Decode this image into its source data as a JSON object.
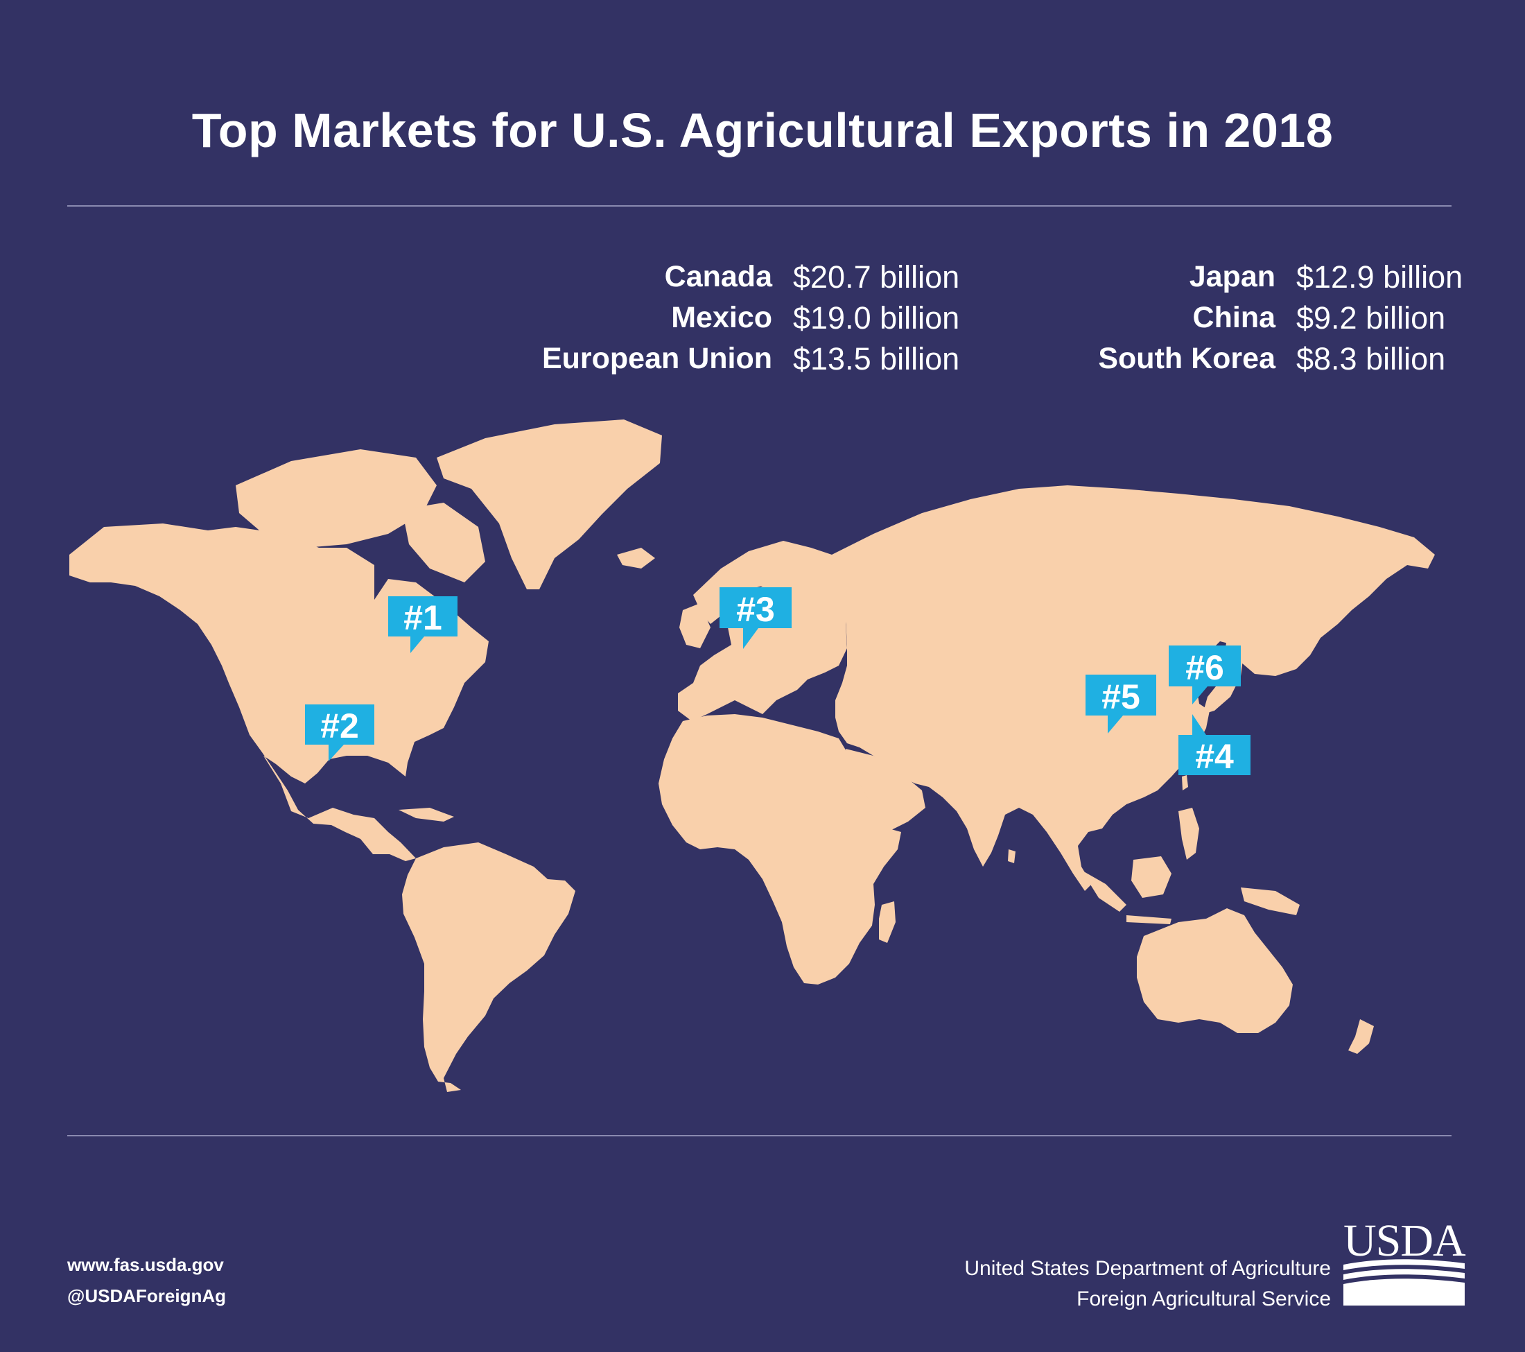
{
  "title": "Top Markets for U.S. Agricultural Exports in 2018",
  "stats": {
    "left": [
      {
        "name": "Canada",
        "value": "$20.7 billion"
      },
      {
        "name": "Mexico",
        "value": "$19.0 billion"
      },
      {
        "name": "European Union",
        "value": "$13.5 billion"
      }
    ],
    "right": [
      {
        "name": "Japan",
        "value": "$12.9 billion"
      },
      {
        "name": "China",
        "value": "$9.2 billion"
      },
      {
        "name": "South Korea",
        "value": "$8.3 billion"
      }
    ]
  },
  "markers": [
    {
      "rank": "#1",
      "market": "Canada"
    },
    {
      "rank": "#2",
      "market": "Mexico"
    },
    {
      "rank": "#3",
      "market": "European Union"
    },
    {
      "rank": "#4",
      "market": "Japan"
    },
    {
      "rank": "#5",
      "market": "China"
    },
    {
      "rank": "#6",
      "market": "South Korea"
    }
  ],
  "colors": {
    "background": "#333264",
    "land": "#f9d0ab",
    "marker": "#1fb0e2",
    "text": "#ffffff"
  },
  "footer": {
    "website": "www.fas.usda.gov",
    "handle": "@USDAForeignAg",
    "agency_line1": "United States Department of Agriculture",
    "agency_line2": "Foreign Agricultural Service",
    "logo_text": "USDA"
  }
}
